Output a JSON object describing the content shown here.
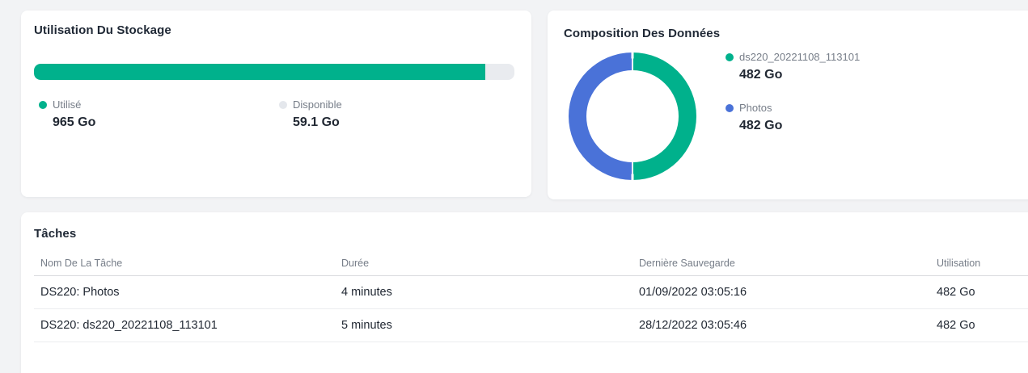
{
  "colors": {
    "page_bg": "#f2f3f5",
    "card_bg": "#ffffff",
    "green": "#00b18c",
    "blue": "#4a72d8",
    "track_gray": "#e9ebef",
    "available_dot": "#e4e7ec",
    "title_text": "#1f2835",
    "muted_text": "#767d88",
    "value_text": "#212833"
  },
  "storage_card": {
    "title": "Utilisation Du Stockage",
    "used_percent": 94,
    "used": {
      "label": "Utilisé",
      "value": "965 Go",
      "color": "#00b18c"
    },
    "available": {
      "label": "Disponible",
      "value": "59.1 Go",
      "color": "#e4e7ec"
    }
  },
  "composition_card": {
    "title": "Composition Des Données",
    "legend": [
      {
        "label": "ds220_20221108_113101",
        "value": "482 Go",
        "color": "#00b18c",
        "percent": 50
      },
      {
        "label": "Photos",
        "value": "482 Go",
        "color": "#4a72d8",
        "percent": 50
      }
    ]
  },
  "tasks_card": {
    "title": "Tâches",
    "columns": [
      "Nom De La Tâche",
      "Durée",
      "Dernière Sauvegarde",
      "Utilisation"
    ],
    "rows": [
      [
        "DS220: Photos",
        "4 minutes",
        "01/09/2022 03:05:16",
        "482 Go"
      ],
      [
        "DS220: ds220_20221108_113101",
        "5 minutes",
        "28/12/2022 03:05:46",
        "482 Go"
      ]
    ]
  },
  "chart_data": [
    {
      "type": "bar",
      "variant": "horizontal-progress",
      "title": "Utilisation Du Stockage",
      "categories": [
        "Utilisé",
        "Disponible"
      ],
      "values": [
        965,
        59.1
      ],
      "unit": "Go",
      "used_fraction": 0.94,
      "colors": [
        "#00b18c",
        "#e9ebef"
      ],
      "legend_position": "below-bar"
    },
    {
      "type": "pie",
      "variant": "donut",
      "title": "Composition Des Données",
      "labels": [
        "ds220_20221108_113101",
        "Photos"
      ],
      "values": [
        482,
        482
      ],
      "unit": "Go",
      "colors": [
        "#00b18c",
        "#4a72d8"
      ],
      "start_angle_deg": 0,
      "green_arc": "0-180deg (right half)",
      "blue_arc": "180-360deg (left half)",
      "legend_position": "right"
    }
  ]
}
